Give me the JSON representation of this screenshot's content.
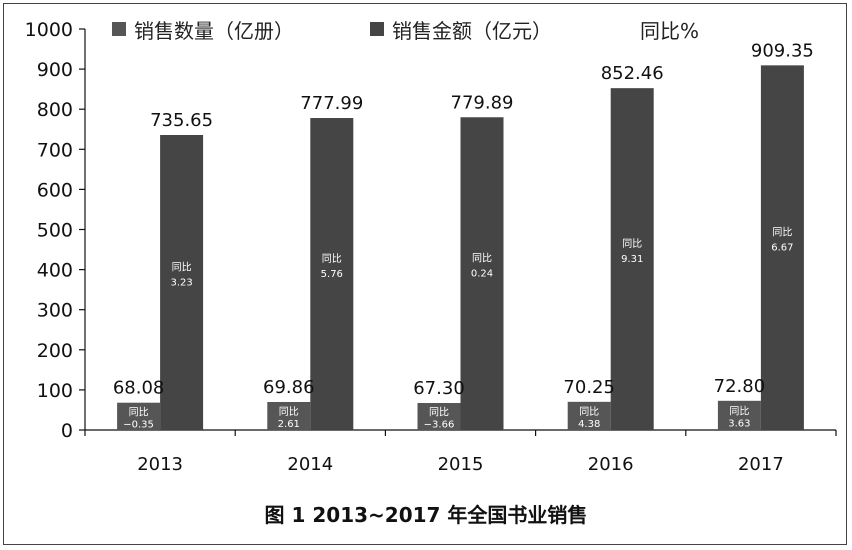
{
  "chart_data": {
    "type": "bar",
    "categories": [
      "2013",
      "2014",
      "2015",
      "2016",
      "2017"
    ],
    "series": [
      {
        "name": "销售数量（亿册）",
        "values": [
          68.08,
          69.86,
          67.3,
          70.25,
          72.8
        ],
        "labels": [
          "68.08",
          "69.86",
          "67.30",
          "70.25",
          "72.80"
        ],
        "yoy": [
          "−0.35",
          "2.61",
          "−3.66",
          "4.38",
          "3.63"
        ],
        "color": "#565656"
      },
      {
        "name": "销售金额（亿元）",
        "values": [
          735.65,
          777.99,
          779.89,
          852.46,
          909.35
        ],
        "labels": [
          "735.65",
          "777.99",
          "779.89",
          "852.46",
          "909.35"
        ],
        "yoy": [
          "3.23",
          "5.76",
          "0.24",
          "9.31",
          "6.67"
        ],
        "color": "#454545"
      }
    ],
    "yoy_label": "同比",
    "extra_legend": "同比%",
    "ylim": [
      0,
      1000
    ],
    "yticks": [
      "0",
      "100",
      "200",
      "300",
      "400",
      "500",
      "600",
      "700",
      "800",
      "900",
      "1000"
    ],
    "legend_position": "top",
    "grid": false
  },
  "caption": "图 1  2013~2017 年全国书业销售"
}
